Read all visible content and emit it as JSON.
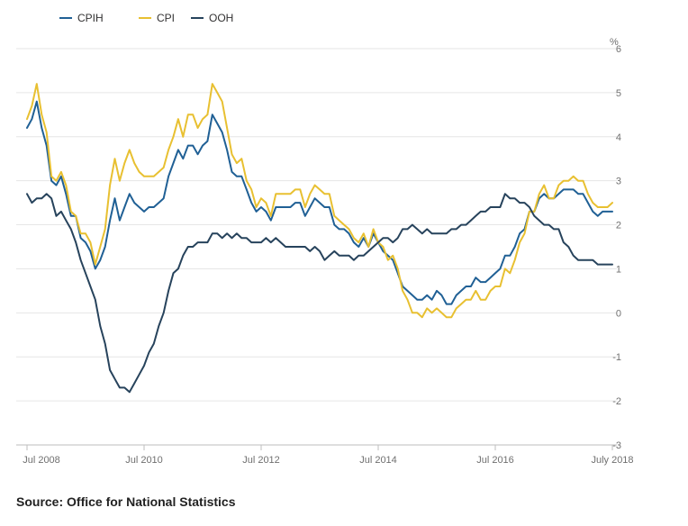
{
  "chart_data": {
    "type": "line",
    "title": "",
    "xlabel": "",
    "ylabel": "%",
    "ylim": [
      -3,
      6
    ],
    "y_ticks": [
      6,
      5,
      4,
      3,
      2,
      1,
      0,
      -1,
      -2,
      -3
    ],
    "x_range": [
      "2008-07",
      "2018-07"
    ],
    "x_ticks": [
      "Jul 2008",
      "Jul 2010",
      "Jul 2012",
      "Jul 2014",
      "Jul 2016",
      "July 2018"
    ],
    "grid": true,
    "legend_position": "top-left",
    "x": [
      "2008-07",
      "2008-08",
      "2008-09",
      "2008-10",
      "2008-11",
      "2008-12",
      "2009-01",
      "2009-02",
      "2009-03",
      "2009-04",
      "2009-05",
      "2009-06",
      "2009-07",
      "2009-08",
      "2009-09",
      "2009-10",
      "2009-11",
      "2009-12",
      "2010-01",
      "2010-02",
      "2010-03",
      "2010-04",
      "2010-05",
      "2010-06",
      "2010-07",
      "2010-08",
      "2010-09",
      "2010-10",
      "2010-11",
      "2010-12",
      "2011-01",
      "2011-02",
      "2011-03",
      "2011-04",
      "2011-05",
      "2011-06",
      "2011-07",
      "2011-08",
      "2011-09",
      "2011-10",
      "2011-11",
      "2011-12",
      "2012-01",
      "2012-02",
      "2012-03",
      "2012-04",
      "2012-05",
      "2012-06",
      "2012-07",
      "2012-08",
      "2012-09",
      "2012-10",
      "2012-11",
      "2012-12",
      "2013-01",
      "2013-02",
      "2013-03",
      "2013-04",
      "2013-05",
      "2013-06",
      "2013-07",
      "2013-08",
      "2013-09",
      "2013-10",
      "2013-11",
      "2013-12",
      "2014-01",
      "2014-02",
      "2014-03",
      "2014-04",
      "2014-05",
      "2014-06",
      "2014-07",
      "2014-08",
      "2014-09",
      "2014-10",
      "2014-11",
      "2014-12",
      "2015-01",
      "2015-02",
      "2015-03",
      "2015-04",
      "2015-05",
      "2015-06",
      "2015-07",
      "2015-08",
      "2015-09",
      "2015-10",
      "2015-11",
      "2015-12",
      "2016-01",
      "2016-02",
      "2016-03",
      "2016-04",
      "2016-05",
      "2016-06",
      "2016-07",
      "2016-08",
      "2016-09",
      "2016-10",
      "2016-11",
      "2016-12",
      "2017-01",
      "2017-02",
      "2017-03",
      "2017-04",
      "2017-05",
      "2017-06",
      "2017-07",
      "2017-08",
      "2017-09",
      "2017-10",
      "2017-11",
      "2017-12",
      "2018-01",
      "2018-02",
      "2018-03",
      "2018-04",
      "2018-05",
      "2018-06",
      "2018-07"
    ],
    "series": [
      {
        "name": "CPIH",
        "color": "#206095",
        "values": [
          4.2,
          4.4,
          4.8,
          4.2,
          3.8,
          3.0,
          2.9,
          3.1,
          2.7,
          2.2,
          2.2,
          1.7,
          1.6,
          1.4,
          1.0,
          1.2,
          1.5,
          2.1,
          2.6,
          2.1,
          2.4,
          2.7,
          2.5,
          2.4,
          2.3,
          2.4,
          2.4,
          2.5,
          2.6,
          3.1,
          3.4,
          3.7,
          3.5,
          3.8,
          3.8,
          3.6,
          3.8,
          3.9,
          4.5,
          4.3,
          4.1,
          3.7,
          3.2,
          3.1,
          3.1,
          2.8,
          2.5,
          2.3,
          2.4,
          2.3,
          2.1,
          2.4,
          2.4,
          2.4,
          2.4,
          2.5,
          2.5,
          2.2,
          2.4,
          2.6,
          2.5,
          2.4,
          2.4,
          2.0,
          1.9,
          1.9,
          1.8,
          1.6,
          1.5,
          1.7,
          1.5,
          1.8,
          1.6,
          1.4,
          1.3,
          1.2,
          0.9,
          0.6,
          0.5,
          0.4,
          0.3,
          0.3,
          0.4,
          0.3,
          0.5,
          0.4,
          0.2,
          0.2,
          0.4,
          0.5,
          0.6,
          0.6,
          0.8,
          0.7,
          0.7,
          0.8,
          0.9,
          1.0,
          1.3,
          1.3,
          1.5,
          1.8,
          1.9,
          2.3,
          2.3,
          2.6,
          2.7,
          2.6,
          2.6,
          2.7,
          2.8,
          2.8,
          2.8,
          2.7,
          2.7,
          2.5,
          2.3,
          2.2,
          2.3,
          2.3,
          2.3
        ],
        "note": ""
      },
      {
        "name": "CPI",
        "color": "#e8c031",
        "values": [
          4.4,
          4.7,
          5.2,
          4.5,
          4.1,
          3.1,
          3.0,
          3.2,
          2.9,
          2.3,
          2.2,
          1.8,
          1.8,
          1.6,
          1.1,
          1.5,
          1.9,
          2.9,
          3.5,
          3.0,
          3.4,
          3.7,
          3.4,
          3.2,
          3.1,
          3.1,
          3.1,
          3.2,
          3.3,
          3.7,
          4.0,
          4.4,
          4.0,
          4.5,
          4.5,
          4.2,
          4.4,
          4.5,
          5.2,
          5.0,
          4.8,
          4.2,
          3.6,
          3.4,
          3.5,
          3.0,
          2.8,
          2.4,
          2.6,
          2.5,
          2.2,
          2.7,
          2.7,
          2.7,
          2.7,
          2.8,
          2.8,
          2.4,
          2.7,
          2.9,
          2.8,
          2.7,
          2.7,
          2.2,
          2.1,
          2.0,
          1.9,
          1.7,
          1.6,
          1.8,
          1.5,
          1.9,
          1.6,
          1.5,
          1.2,
          1.3,
          1.0,
          0.5,
          0.3,
          0.0,
          0.0,
          -0.1,
          0.1,
          0.0,
          0.1,
          0.0,
          -0.1,
          -0.1,
          0.1,
          0.2,
          0.3,
          0.3,
          0.5,
          0.3,
          0.3,
          0.5,
          0.6,
          0.6,
          1.0,
          0.9,
          1.2,
          1.6,
          1.8,
          2.3,
          2.3,
          2.7,
          2.9,
          2.6,
          2.6,
          2.9,
          3.0,
          3.0,
          3.1,
          3.0,
          3.0,
          2.7,
          2.5,
          2.4,
          2.4,
          2.4,
          2.5
        ],
        "note": ""
      },
      {
        "name": "OOH",
        "color": "#27435c",
        "values": [
          2.7,
          2.5,
          2.6,
          2.6,
          2.7,
          2.6,
          2.2,
          2.3,
          2.1,
          1.9,
          1.6,
          1.2,
          0.9,
          0.6,
          0.3,
          -0.3,
          -0.7,
          -1.3,
          -1.5,
          -1.7,
          -1.7,
          -1.8,
          -1.6,
          -1.4,
          -1.2,
          -0.9,
          -0.7,
          -0.3,
          0.0,
          0.5,
          0.9,
          1.0,
          1.3,
          1.5,
          1.5,
          1.6,
          1.6,
          1.6,
          1.8,
          1.8,
          1.7,
          1.8,
          1.7,
          1.8,
          1.7,
          1.7,
          1.6,
          1.6,
          1.6,
          1.7,
          1.6,
          1.7,
          1.6,
          1.5,
          1.5,
          1.5,
          1.5,
          1.5,
          1.4,
          1.5,
          1.4,
          1.2,
          1.3,
          1.4,
          1.3,
          1.3,
          1.3,
          1.2,
          1.3,
          1.3,
          1.4,
          1.5,
          1.6,
          1.7,
          1.7,
          1.6,
          1.7,
          1.9,
          1.9,
          2.0,
          1.9,
          1.8,
          1.9,
          1.8,
          1.8,
          1.8,
          1.8,
          1.9,
          1.9,
          2.0,
          2.0,
          2.1,
          2.2,
          2.3,
          2.3,
          2.4,
          2.4,
          2.4,
          2.7,
          2.6,
          2.6,
          2.5,
          2.5,
          2.4,
          2.2,
          2.1,
          2.0,
          2.0,
          1.9,
          1.9,
          1.6,
          1.5,
          1.3,
          1.2,
          1.2,
          1.2,
          1.2,
          1.1,
          1.1,
          1.1,
          1.1
        ],
        "note": ""
      }
    ]
  },
  "source_text": "Source: Office for National Statistics"
}
